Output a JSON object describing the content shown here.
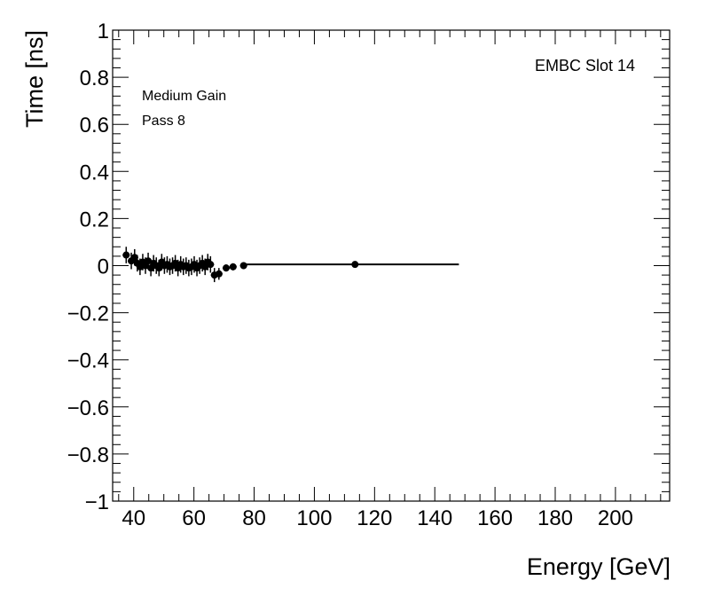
{
  "chart_data": {
    "type": "scatter",
    "xlabel": "Energy [GeV]",
    "ylabel": "Time [ns]",
    "xlim": [
      33,
      218
    ],
    "ylim": [
      -1,
      1
    ],
    "x_ticks": [
      "40",
      "60",
      "80",
      "100",
      "120",
      "140",
      "160",
      "180",
      "200"
    ],
    "y_ticks": [
      "−1",
      "−0.8",
      "−0.6",
      "−0.4",
      "−0.2",
      "0",
      "0.2",
      "0.4",
      "0.6",
      "0.8",
      "1"
    ],
    "annotations": {
      "top_right": "EMBC Slot 14",
      "gain": "Medium Gain",
      "pass": "Pass 8"
    },
    "grid": false,
    "points": [
      {
        "x": 37.5,
        "y": 0.045,
        "err": 0.035
      },
      {
        "x": 39.2,
        "y": 0.02,
        "err": 0.035
      },
      {
        "x": 40.3,
        "y": 0.035,
        "err": 0.035
      },
      {
        "x": 41.2,
        "y": 0.01,
        "err": 0.035
      },
      {
        "x": 42.1,
        "y": -0.005,
        "err": 0.035
      },
      {
        "x": 43.0,
        "y": 0.015,
        "err": 0.035
      },
      {
        "x": 43.9,
        "y": 0.0,
        "err": 0.035
      },
      {
        "x": 44.8,
        "y": 0.02,
        "err": 0.035
      },
      {
        "x": 45.7,
        "y": -0.01,
        "err": 0.035
      },
      {
        "x": 46.6,
        "y": 0.01,
        "err": 0.035
      },
      {
        "x": 47.5,
        "y": 0.0,
        "err": 0.035
      },
      {
        "x": 48.4,
        "y": -0.01,
        "err": 0.035
      },
      {
        "x": 49.3,
        "y": 0.015,
        "err": 0.035
      },
      {
        "x": 50.2,
        "y": 0.0,
        "err": 0.035
      },
      {
        "x": 51.1,
        "y": 0.005,
        "err": 0.035
      },
      {
        "x": 52.0,
        "y": -0.005,
        "err": 0.035
      },
      {
        "x": 52.9,
        "y": 0.0,
        "err": 0.035
      },
      {
        "x": 53.8,
        "y": 0.01,
        "err": 0.035
      },
      {
        "x": 54.7,
        "y": -0.01,
        "err": 0.035
      },
      {
        "x": 55.6,
        "y": 0.005,
        "err": 0.035
      },
      {
        "x": 56.5,
        "y": -0.005,
        "err": 0.035
      },
      {
        "x": 57.4,
        "y": 0.0,
        "err": 0.035
      },
      {
        "x": 58.3,
        "y": -0.01,
        "err": 0.035
      },
      {
        "x": 59.2,
        "y": -0.005,
        "err": 0.035
      },
      {
        "x": 60.1,
        "y": 0.005,
        "err": 0.035
      },
      {
        "x": 61.0,
        "y": -0.01,
        "err": 0.035
      },
      {
        "x": 61.9,
        "y": 0.0,
        "err": 0.035
      },
      {
        "x": 62.8,
        "y": 0.01,
        "err": 0.035
      },
      {
        "x": 63.7,
        "y": -0.005,
        "err": 0.035
      },
      {
        "x": 64.6,
        "y": 0.015,
        "err": 0.035
      },
      {
        "x": 65.5,
        "y": 0.005,
        "err": 0.035
      },
      {
        "x": 66.8,
        "y": -0.04,
        "err": 0.03
      },
      {
        "x": 68.3,
        "y": -0.035,
        "err": 0.025
      },
      {
        "x": 70.7,
        "y": -0.01,
        "err": 0.015
      },
      {
        "x": 73.0,
        "y": -0.005,
        "err": 0.015
      },
      {
        "x": 76.5,
        "y": 0.0,
        "err": 0.015
      },
      {
        "x": 113.5,
        "y": 0.005,
        "err": 0.012
      }
    ],
    "fit_line": {
      "x": [
        77,
        148
      ],
      "y": [
        0.005,
        0.005
      ]
    }
  }
}
